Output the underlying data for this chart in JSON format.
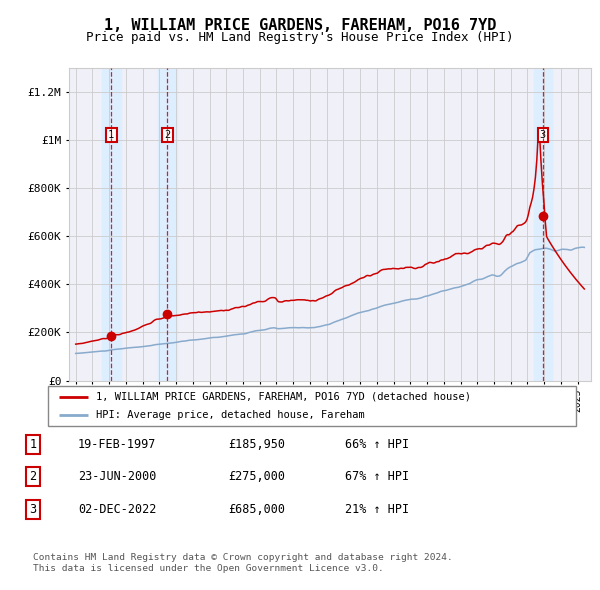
{
  "title": "1, WILLIAM PRICE GARDENS, FAREHAM, PO16 7YD",
  "subtitle": "Price paid vs. HM Land Registry's House Price Index (HPI)",
  "title_fontsize": 11,
  "subtitle_fontsize": 9,
  "ylabel_ticks": [
    "£0",
    "£200K",
    "£400K",
    "£600K",
    "£800K",
    "£1M",
    "£1.2M"
  ],
  "ytick_values": [
    0,
    200000,
    400000,
    600000,
    800000,
    1000000,
    1200000
  ],
  "ylim": [
    0,
    1300000
  ],
  "xlim_start": 1994.6,
  "xlim_end": 2025.8,
  "sale_dates": [
    1997.13,
    2000.48,
    2022.92
  ],
  "sale_prices": [
    185950,
    275000,
    685000
  ],
  "sale_labels": [
    "1",
    "2",
    "3"
  ],
  "hpi_label": "HPI: Average price, detached house, Fareham",
  "property_label": "1, WILLIAM PRICE GARDENS, FAREHAM, PO16 7YD (detached house)",
  "red_color": "#cc0000",
  "blue_color": "#88aacc",
  "shade_color": "#ddeeff",
  "grid_color": "#cccccc",
  "background_color": "#f0f0f8",
  "table_rows": [
    [
      "1",
      "19-FEB-1997",
      "£185,950",
      "66% ↑ HPI"
    ],
    [
      "2",
      "23-JUN-2000",
      "£275,000",
      "67% ↑ HPI"
    ],
    [
      "3",
      "02-DEC-2022",
      "£685,000",
      "21% ↑ HPI"
    ]
  ],
  "footer_text": "Contains HM Land Registry data © Crown copyright and database right 2024.\nThis data is licensed under the Open Government Licence v3.0.",
  "random_seed": 42
}
